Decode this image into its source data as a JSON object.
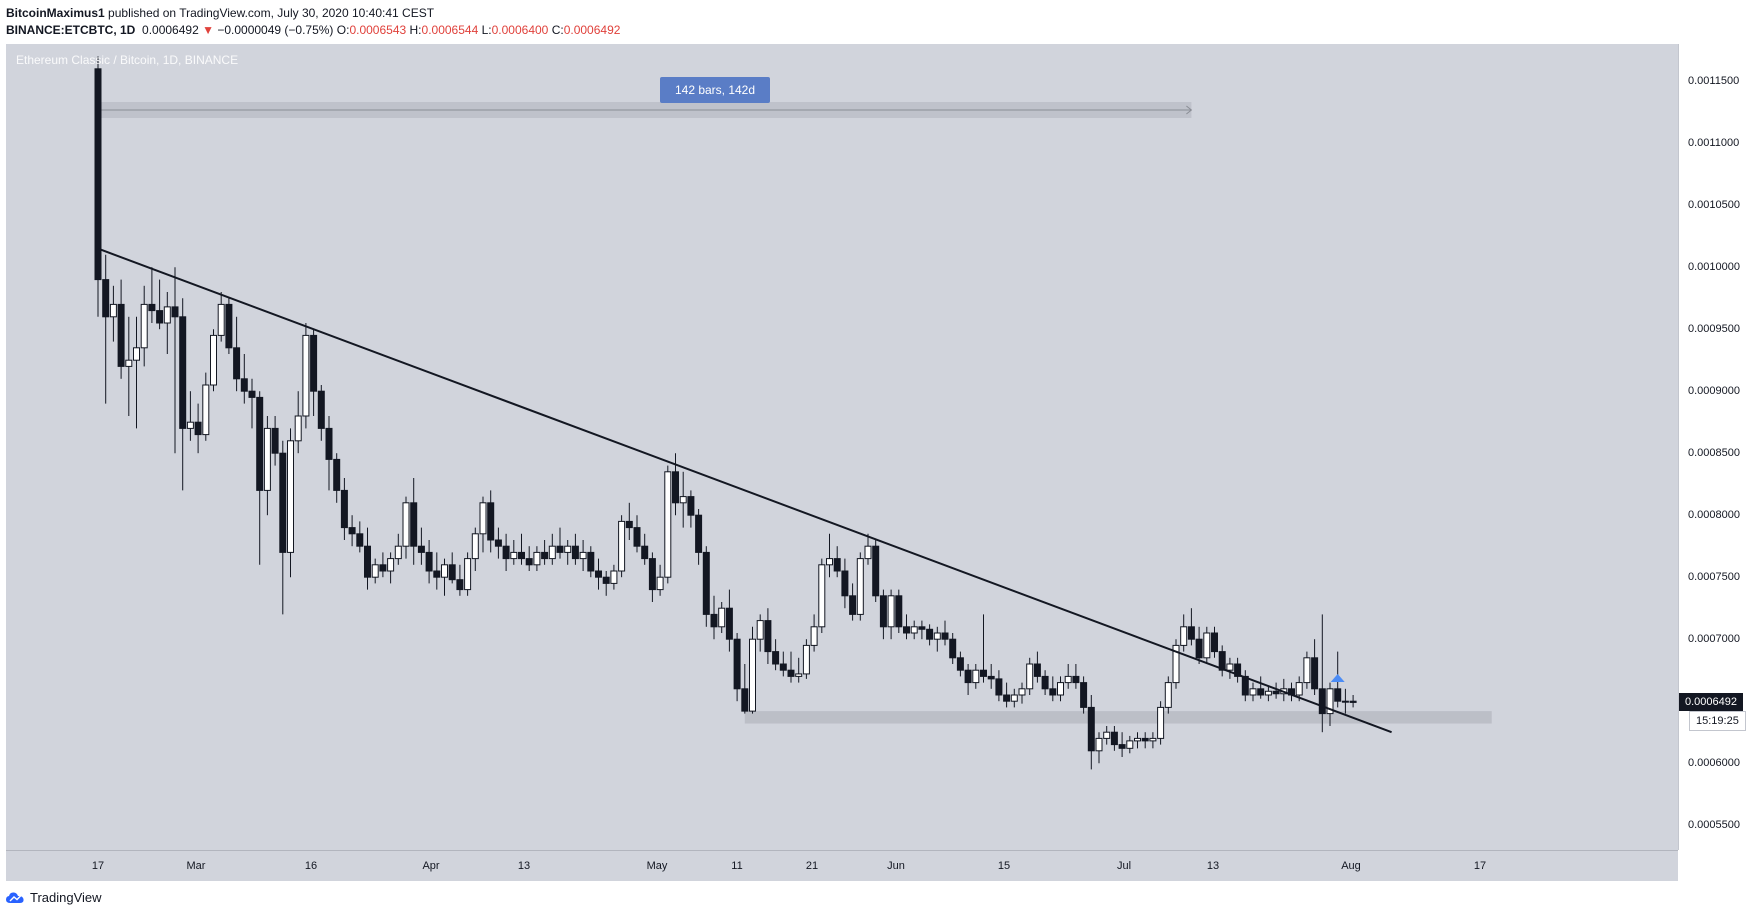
{
  "header": {
    "author": "BitcoinMaximus1",
    "published_text": "published on TradingView.com, July 30, 2020 10:40:41 CEST",
    "symbol": "BINANCE:ETCBTC, 1D",
    "last_price": "0.0006492",
    "change_arrow": "▼",
    "change": "−0.0000049 (−0.75%)",
    "open_label": "O:",
    "open": "0.0006543",
    "high_label": "H:",
    "high": "0.0006544",
    "low_label": "L:",
    "low": "0.0006400",
    "close_label": "C:",
    "close": "0.0006492"
  },
  "watermark": "Ethereum Classic / Bitcoin, 1D, BINANCE",
  "range_tool": {
    "label": "142 bars, 142d"
  },
  "price_badge": "0.0006492",
  "countdown_badge": "15:19:25",
  "brand": "TradingView",
  "colors": {
    "background": "#d1d4dc",
    "up_candle": "#ffffff",
    "down_candle": "#131722",
    "trendline": "#131722",
    "support_zone": "#b8bbc3",
    "range_label_bg": "#5a7dc6",
    "arrow": "#4c8cf5",
    "change_red": "#e0413b"
  },
  "chart_data": {
    "type": "candlestick",
    "title": "Ethereum Classic / Bitcoin, 1D, BINANCE",
    "ylim": [
      0.00053,
      0.00118
    ],
    "y_ticks": [
      "0.0011500",
      "0.0011000",
      "0.0010500",
      "0.0010000",
      "0.0009500",
      "0.0009000",
      "0.0008500",
      "0.0008000",
      "0.0007500",
      "0.0007000",
      "0.0006500",
      "0.0006000",
      "0.0005500"
    ],
    "x_ticks": [
      "17",
      "Mar",
      "16",
      "Apr",
      "13",
      "May",
      "11",
      "21",
      "Jun",
      "15",
      "Jul",
      "13",
      "Aug",
      "17"
    ],
    "trendline": {
      "from": [
        "2020-02-17",
        0.001015
      ],
      "to": [
        "2020-08-03",
        0.000625
      ]
    },
    "support_zone": {
      "from": "2020-05-11",
      "to": "2020-08-16",
      "low": 0.000632,
      "high": 0.000642
    },
    "measure_range": {
      "from": "2020-02-17",
      "to": "2020-07-08",
      "bars": 142,
      "days": 142
    },
    "breakout_marker": {
      "date": "2020-07-27",
      "type": "up-arrow"
    },
    "ohlc": [
      [
        "2020-02-17",
        0.00116,
        0.00117,
        0.00096,
        0.00099
      ],
      [
        "2020-02-18",
        0.00099,
        0.00101,
        0.00089,
        0.00096
      ],
      [
        "2020-02-19",
        0.00096,
        0.000985,
        0.00094,
        0.00097
      ],
      [
        "2020-02-20",
        0.00097,
        0.00099,
        0.00091,
        0.00092
      ],
      [
        "2020-02-21",
        0.00092,
        0.00096,
        0.00088,
        0.000925
      ],
      [
        "2020-02-22",
        0.000925,
        0.00096,
        0.00087,
        0.000935
      ],
      [
        "2020-02-23",
        0.000935,
        0.000985,
        0.00092,
        0.00097
      ],
      [
        "2020-02-24",
        0.00097,
        0.001,
        0.000955,
        0.000965
      ],
      [
        "2020-02-25",
        0.000965,
        0.00099,
        0.00095,
        0.000955
      ],
      [
        "2020-02-26",
        0.000955,
        0.00098,
        0.00093,
        0.000968
      ],
      [
        "2020-02-27",
        0.000968,
        0.001,
        0.00085,
        0.00096
      ],
      [
        "2020-02-28",
        0.00096,
        0.000975,
        0.00082,
        0.00087
      ],
      [
        "2020-02-29",
        0.00087,
        0.0009,
        0.00086,
        0.000875
      ],
      [
        "2020-03-01",
        0.000875,
        0.00089,
        0.00085,
        0.000865
      ],
      [
        "2020-03-02",
        0.000865,
        0.000915,
        0.00086,
        0.000905
      ],
      [
        "2020-03-03",
        0.000905,
        0.00095,
        0.0009,
        0.000945
      ],
      [
        "2020-03-04",
        0.000945,
        0.00098,
        0.00094,
        0.00097
      ],
      [
        "2020-03-05",
        0.00097,
        0.000975,
        0.00093,
        0.000935
      ],
      [
        "2020-03-06",
        0.000935,
        0.00096,
        0.0009,
        0.00091
      ],
      [
        "2020-03-07",
        0.00091,
        0.00093,
        0.00089,
        0.0009
      ],
      [
        "2020-03-08",
        0.0009,
        0.00091,
        0.00087,
        0.000895
      ],
      [
        "2020-03-09",
        0.000895,
        0.0009,
        0.00076,
        0.00082
      ],
      [
        "2020-03-10",
        0.00082,
        0.00088,
        0.0008,
        0.00087
      ],
      [
        "2020-03-11",
        0.00087,
        0.00088,
        0.00084,
        0.00085
      ],
      [
        "2020-03-12",
        0.00085,
        0.00086,
        0.00072,
        0.00077
      ],
      [
        "2020-03-13",
        0.00077,
        0.00087,
        0.00075,
        0.00086
      ],
      [
        "2020-03-14",
        0.00086,
        0.0009,
        0.00085,
        0.00088
      ],
      [
        "2020-03-15",
        0.00088,
        0.000955,
        0.00087,
        0.000945
      ],
      [
        "2020-03-16",
        0.000945,
        0.00095,
        0.00088,
        0.0009
      ],
      [
        "2020-03-17",
        0.0009,
        0.000905,
        0.00086,
        0.00087
      ],
      [
        "2020-03-18",
        0.00087,
        0.00088,
        0.00082,
        0.000845
      ],
      [
        "2020-03-19",
        0.000845,
        0.00085,
        0.00081,
        0.00082
      ],
      [
        "2020-03-20",
        0.00082,
        0.00083,
        0.00078,
        0.00079
      ],
      [
        "2020-03-21",
        0.00079,
        0.0008,
        0.000775,
        0.000785
      ],
      [
        "2020-03-22",
        0.000785,
        0.000795,
        0.00077,
        0.000775
      ],
      [
        "2020-03-23",
        0.000775,
        0.00079,
        0.00074,
        0.00075
      ],
      [
        "2020-03-24",
        0.00075,
        0.000765,
        0.000745,
        0.00076
      ],
      [
        "2020-03-25",
        0.00076,
        0.00077,
        0.00075,
        0.000755
      ],
      [
        "2020-03-26",
        0.000755,
        0.00077,
        0.000745,
        0.000765
      ],
      [
        "2020-03-27",
        0.000765,
        0.000785,
        0.00076,
        0.000775
      ],
      [
        "2020-03-28",
        0.000775,
        0.000815,
        0.000765,
        0.00081
      ],
      [
        "2020-03-29",
        0.00081,
        0.00083,
        0.00076,
        0.000775
      ],
      [
        "2020-03-30",
        0.000775,
        0.00079,
        0.00076,
        0.00077
      ],
      [
        "2020-03-31",
        0.00077,
        0.00078,
        0.000745,
        0.000755
      ],
      [
        "2020-04-01",
        0.000755,
        0.00077,
        0.00074,
        0.00075
      ],
      [
        "2020-04-02",
        0.00075,
        0.000765,
        0.000735,
        0.00076
      ],
      [
        "2020-04-03",
        0.00076,
        0.00077,
        0.000745,
        0.000748
      ],
      [
        "2020-04-04",
        0.000748,
        0.00076,
        0.000735,
        0.00074
      ],
      [
        "2020-04-05",
        0.00074,
        0.00077,
        0.000735,
        0.000765
      ],
      [
        "2020-04-06",
        0.000765,
        0.00079,
        0.000755,
        0.000785
      ],
      [
        "2020-04-07",
        0.000785,
        0.000815,
        0.00077,
        0.00081
      ],
      [
        "2020-04-08",
        0.00081,
        0.00082,
        0.00077,
        0.00078
      ],
      [
        "2020-04-09",
        0.00078,
        0.00079,
        0.000765,
        0.000775
      ],
      [
        "2020-04-10",
        0.000775,
        0.000785,
        0.000755,
        0.000765
      ],
      [
        "2020-04-11",
        0.000765,
        0.00078,
        0.00076,
        0.00077
      ],
      [
        "2020-04-12",
        0.00077,
        0.000785,
        0.00076,
        0.000765
      ],
      [
        "2020-04-13",
        0.000765,
        0.000775,
        0.000755,
        0.00076
      ],
      [
        "2020-04-14",
        0.00076,
        0.000775,
        0.000755,
        0.00077
      ],
      [
        "2020-04-15",
        0.00077,
        0.00078,
        0.00076,
        0.000765
      ],
      [
        "2020-04-16",
        0.000765,
        0.000785,
        0.00076,
        0.000775
      ],
      [
        "2020-04-17",
        0.000775,
        0.00079,
        0.000765,
        0.00077
      ],
      [
        "2020-04-18",
        0.00077,
        0.00078,
        0.00076,
        0.000775
      ],
      [
        "2020-04-19",
        0.000775,
        0.000785,
        0.00076,
        0.000765
      ],
      [
        "2020-04-20",
        0.000765,
        0.00078,
        0.000755,
        0.00077
      ],
      [
        "2020-04-21",
        0.00077,
        0.000775,
        0.00075,
        0.000755
      ],
      [
        "2020-04-22",
        0.000755,
        0.000765,
        0.00074,
        0.00075
      ],
      [
        "2020-04-23",
        0.00075,
        0.000755,
        0.000735,
        0.000745
      ],
      [
        "2020-04-24",
        0.000745,
        0.00076,
        0.00074,
        0.000755
      ],
      [
        "2020-04-25",
        0.000755,
        0.0008,
        0.00075,
        0.000795
      ],
      [
        "2020-04-26",
        0.000795,
        0.00081,
        0.00078,
        0.00079
      ],
      [
        "2020-04-27",
        0.00079,
        0.0008,
        0.00077,
        0.000775
      ],
      [
        "2020-04-28",
        0.000775,
        0.000785,
        0.00076,
        0.000765
      ],
      [
        "2020-04-29",
        0.000765,
        0.00077,
        0.00073,
        0.00074
      ],
      [
        "2020-04-30",
        0.00074,
        0.00076,
        0.000735,
        0.00075
      ],
      [
        "2020-05-01",
        0.00075,
        0.00084,
        0.000745,
        0.000835
      ],
      [
        "2020-05-02",
        0.000835,
        0.00085,
        0.0008,
        0.00081
      ],
      [
        "2020-05-03",
        0.00081,
        0.000835,
        0.00079,
        0.000815
      ],
      [
        "2020-05-04",
        0.000815,
        0.00082,
        0.00079,
        0.0008
      ],
      [
        "2020-05-05",
        0.0008,
        0.000805,
        0.00076,
        0.00077
      ],
      [
        "2020-05-06",
        0.00077,
        0.000775,
        0.00071,
        0.00072
      ],
      [
        "2020-05-07",
        0.00072,
        0.000735,
        0.0007,
        0.00071
      ],
      [
        "2020-05-08",
        0.00071,
        0.00073,
        0.000705,
        0.000725
      ],
      [
        "2020-05-09",
        0.000725,
        0.00074,
        0.00069,
        0.0007
      ],
      [
        "2020-05-10",
        0.0007,
        0.000705,
        0.00065,
        0.00066
      ],
      [
        "2020-05-11",
        0.00066,
        0.00068,
        0.00064,
        0.000642
      ],
      [
        "2020-05-12",
        0.000642,
        0.00071,
        0.00064,
        0.0007
      ],
      [
        "2020-05-13",
        0.0007,
        0.00072,
        0.00069,
        0.000715
      ],
      [
        "2020-05-14",
        0.000715,
        0.000725,
        0.00068,
        0.00069
      ],
      [
        "2020-05-15",
        0.00069,
        0.0007,
        0.000675,
        0.00068
      ],
      [
        "2020-05-16",
        0.00068,
        0.00069,
        0.00067,
        0.000675
      ],
      [
        "2020-05-17",
        0.000675,
        0.00069,
        0.000665,
        0.00067
      ],
      [
        "2020-05-18",
        0.00067,
        0.000685,
        0.000665,
        0.000672
      ],
      [
        "2020-05-19",
        0.000672,
        0.0007,
        0.000668,
        0.000695
      ],
      [
        "2020-05-20",
        0.000695,
        0.00072,
        0.00069,
        0.00071
      ],
      [
        "2020-05-21",
        0.00071,
        0.000765,
        0.000705,
        0.00076
      ],
      [
        "2020-05-22",
        0.00076,
        0.000785,
        0.00075,
        0.000765
      ],
      [
        "2020-05-23",
        0.000765,
        0.000775,
        0.00075,
        0.000755
      ],
      [
        "2020-05-24",
        0.000755,
        0.000765,
        0.000725,
        0.000735
      ],
      [
        "2020-05-25",
        0.000735,
        0.000745,
        0.000715,
        0.00072
      ],
      [
        "2020-05-26",
        0.00072,
        0.00077,
        0.000715,
        0.000765
      ],
      [
        "2020-05-27",
        0.000765,
        0.000785,
        0.00076,
        0.000775
      ],
      [
        "2020-05-28",
        0.000775,
        0.00078,
        0.00073,
        0.000735
      ],
      [
        "2020-05-29",
        0.000735,
        0.00074,
        0.0007,
        0.00071
      ],
      [
        "2020-05-30",
        0.00071,
        0.00074,
        0.0007,
        0.000735
      ],
      [
        "2020-05-31",
        0.000735,
        0.00074,
        0.000705,
        0.00071
      ],
      [
        "2020-06-01",
        0.00071,
        0.00072,
        0.0007,
        0.000705
      ],
      [
        "2020-06-02",
        0.000705,
        0.000715,
        0.0007,
        0.00071
      ],
      [
        "2020-06-03",
        0.00071,
        0.000715,
        0.0007,
        0.000708
      ],
      [
        "2020-06-04",
        0.000708,
        0.000712,
        0.000695,
        0.0007
      ],
      [
        "2020-06-05",
        0.0007,
        0.00071,
        0.00069,
        0.000705
      ],
      [
        "2020-06-06",
        0.000705,
        0.000715,
        0.000695,
        0.0007
      ],
      [
        "2020-06-07",
        0.0007,
        0.000705,
        0.00068,
        0.000685
      ],
      [
        "2020-06-08",
        0.000685,
        0.00069,
        0.00067,
        0.000675
      ],
      [
        "2020-06-09",
        0.000675,
        0.00068,
        0.000655,
        0.000665
      ],
      [
        "2020-06-10",
        0.000665,
        0.00068,
        0.00066,
        0.000675
      ],
      [
        "2020-06-11",
        0.000675,
        0.00072,
        0.000665,
        0.00067
      ],
      [
        "2020-06-12",
        0.00067,
        0.00068,
        0.00066,
        0.000668
      ],
      [
        "2020-06-13",
        0.000668,
        0.000675,
        0.00065,
        0.000655
      ],
      [
        "2020-06-14",
        0.000655,
        0.000665,
        0.000645,
        0.00065
      ],
      [
        "2020-06-15",
        0.00065,
        0.00066,
        0.000645,
        0.000655
      ],
      [
        "2020-06-16",
        0.000655,
        0.000665,
        0.000648,
        0.00066
      ],
      [
        "2020-06-17",
        0.00066,
        0.000685,
        0.000655,
        0.00068
      ],
      [
        "2020-06-18",
        0.00068,
        0.00069,
        0.000665,
        0.00067
      ],
      [
        "2020-06-19",
        0.00067,
        0.000675,
        0.000655,
        0.00066
      ],
      [
        "2020-06-20",
        0.00066,
        0.00067,
        0.00065,
        0.000655
      ],
      [
        "2020-06-21",
        0.000655,
        0.00067,
        0.00065,
        0.000665
      ],
      [
        "2020-06-22",
        0.000665,
        0.00068,
        0.00066,
        0.00067
      ],
      [
        "2020-06-23",
        0.00067,
        0.00068,
        0.00066,
        0.000665
      ],
      [
        "2020-06-24",
        0.000665,
        0.00067,
        0.00064,
        0.000645
      ],
      [
        "2020-06-25",
        0.000645,
        0.000655,
        0.000595,
        0.00061
      ],
      [
        "2020-06-26",
        0.00061,
        0.000625,
        0.0006,
        0.00062
      ],
      [
        "2020-06-27",
        0.00062,
        0.00063,
        0.000615,
        0.000625
      ],
      [
        "2020-06-28",
        0.000625,
        0.00063,
        0.00061,
        0.000615
      ],
      [
        "2020-06-29",
        0.000615,
        0.000625,
        0.000605,
        0.000612
      ],
      [
        "2020-06-30",
        0.000612,
        0.000622,
        0.000608,
        0.000618
      ],
      [
        "2020-07-01",
        0.000618,
        0.000625,
        0.000612,
        0.00062
      ],
      [
        "2020-07-02",
        0.00062,
        0.000625,
        0.000612,
        0.000618
      ],
      [
        "2020-07-03",
        0.000618,
        0.000625,
        0.000612,
        0.00062
      ],
      [
        "2020-07-04",
        0.00062,
        0.00065,
        0.000615,
        0.000645
      ],
      [
        "2020-07-05",
        0.000645,
        0.00067,
        0.00064,
        0.000665
      ],
      [
        "2020-07-06",
        0.000665,
        0.0007,
        0.00066,
        0.000695
      ],
      [
        "2020-07-07",
        0.000695,
        0.00072,
        0.00069,
        0.00071
      ],
      [
        "2020-07-08",
        0.00071,
        0.000725,
        0.000695,
        0.0007
      ],
      [
        "2020-07-09",
        0.0007,
        0.00071,
        0.00068,
        0.000685
      ],
      [
        "2020-07-10",
        0.000685,
        0.00071,
        0.00068,
        0.000705
      ],
      [
        "2020-07-11",
        0.000705,
        0.00071,
        0.000685,
        0.00069
      ],
      [
        "2020-07-12",
        0.00069,
        0.000695,
        0.00067,
        0.000675
      ],
      [
        "2020-07-13",
        0.000675,
        0.000685,
        0.000668,
        0.00068
      ],
      [
        "2020-07-14",
        0.00068,
        0.000685,
        0.000665,
        0.00067
      ],
      [
        "2020-07-15",
        0.00067,
        0.000675,
        0.00065,
        0.000655
      ],
      [
        "2020-07-16",
        0.000655,
        0.000665,
        0.00065,
        0.00066
      ],
      [
        "2020-07-17",
        0.00066,
        0.00067,
        0.000652,
        0.000655
      ],
      [
        "2020-07-18",
        0.000655,
        0.000662,
        0.00065,
        0.000658
      ],
      [
        "2020-07-19",
        0.000658,
        0.000665,
        0.000652,
        0.000656
      ],
      [
        "2020-07-20",
        0.000656,
        0.000668,
        0.00065,
        0.00066
      ],
      [
        "2020-07-21",
        0.00066,
        0.000665,
        0.00065,
        0.000655
      ],
      [
        "2020-07-22",
        0.000655,
        0.00067,
        0.00065,
        0.000665
      ],
      [
        "2020-07-23",
        0.000665,
        0.00069,
        0.00066,
        0.000685
      ],
      [
        "2020-07-24",
        0.000685,
        0.0007,
        0.000655,
        0.00066
      ],
      [
        "2020-07-25",
        0.00066,
        0.00072,
        0.000625,
        0.00064
      ],
      [
        "2020-07-26",
        0.00064,
        0.000665,
        0.00063,
        0.00066
      ],
      [
        "2020-07-27",
        0.00066,
        0.00069,
        0.000645,
        0.00065
      ],
      [
        "2020-07-28",
        0.00065,
        0.00066,
        0.00064,
        0.00065
      ],
      [
        "2020-07-29",
        0.00065,
        0.000655,
        0.000645,
        0.000649
      ]
    ]
  }
}
